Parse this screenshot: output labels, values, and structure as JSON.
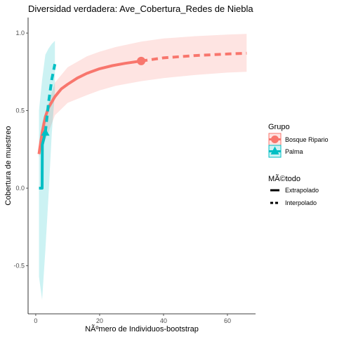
{
  "chart_data": {
    "type": "line",
    "title": "Diversidad verdadera: Ave_Cobertura_Redes de Niebla",
    "xlabel": "NÃºmero de Individuos-bootstrap",
    "ylabel": "Cobertura de muestreo",
    "xlim": [
      -2.4,
      68.8
    ],
    "ylim": [
      -0.81,
      1.1
    ],
    "x_ticks": [
      0,
      20,
      40,
      60
    ],
    "x_tick_labels": [
      "0",
      "20",
      "40",
      "60"
    ],
    "y_ticks": [
      -0.5,
      0.0,
      0.5,
      1.0
    ],
    "y_tick_labels": [
      "-0.5",
      "0.0",
      "0.5",
      "1.0"
    ],
    "grid": false,
    "legend_position": "right",
    "legend": {
      "group_title": "Grupo",
      "method_title": "MÃ©todo",
      "groups": [
        "Bosque Ripario",
        "Palma"
      ],
      "methods": [
        "Extrapolado",
        "Interpolado"
      ]
    },
    "series": [
      {
        "name": "Bosque Ripario",
        "color": "#F8766D",
        "marker": "circle",
        "observed_point": {
          "x": 33,
          "y": 0.82
        },
        "interpolado": {
          "x": [
            1,
            2,
            3,
            4,
            6,
            8,
            10,
            13,
            16,
            20,
            24,
            28,
            33
          ],
          "y": [
            0.22,
            0.36,
            0.46,
            0.52,
            0.59,
            0.64,
            0.67,
            0.71,
            0.74,
            0.77,
            0.79,
            0.805,
            0.82
          ]
        },
        "extrapolado": {
          "x": [
            33,
            40,
            50,
            60,
            66
          ],
          "y": [
            0.82,
            0.84,
            0.855,
            0.865,
            0.87
          ]
        },
        "ci_lower": {
          "x": [
            1,
            2,
            4,
            6,
            10,
            16,
            20,
            25,
            33,
            40,
            50,
            60,
            66
          ],
          "y": [
            0.2,
            0.26,
            0.36,
            0.47,
            0.55,
            0.6,
            0.63,
            0.66,
            0.69,
            0.71,
            0.73,
            0.745,
            0.75
          ]
        },
        "ci_upper": {
          "x": [
            1,
            2,
            4,
            6,
            10,
            16,
            20,
            25,
            33,
            40,
            50,
            60,
            66
          ],
          "y": [
            0.24,
            0.42,
            0.55,
            0.68,
            0.78,
            0.85,
            0.88,
            0.91,
            0.945,
            0.965,
            0.98,
            0.99,
            0.995
          ]
        }
      },
      {
        "name": "Palma",
        "color": "#00BFC4",
        "marker": "triangle",
        "observed_point": {
          "x": 3,
          "y": 0.36
        },
        "interpolado": {
          "x": [
            1,
            2,
            2.05,
            3
          ],
          "y": [
            0.0,
            0.0,
            0.28,
            0.36
          ]
        },
        "extrapolado": {
          "x": [
            3,
            4,
            5,
            6
          ],
          "y": [
            0.36,
            0.55,
            0.7,
            0.8
          ]
        },
        "ci_lower": {
          "x": [
            1,
            2,
            3,
            4,
            5,
            6
          ],
          "y": [
            -0.57,
            -0.72,
            -0.4,
            -0.05,
            0.35,
            0.62
          ]
        },
        "ci_upper": {
          "x": [
            1,
            2,
            3,
            4,
            5,
            6
          ],
          "y": [
            0.5,
            0.7,
            0.86,
            0.9,
            0.93,
            0.95
          ]
        }
      }
    ]
  }
}
